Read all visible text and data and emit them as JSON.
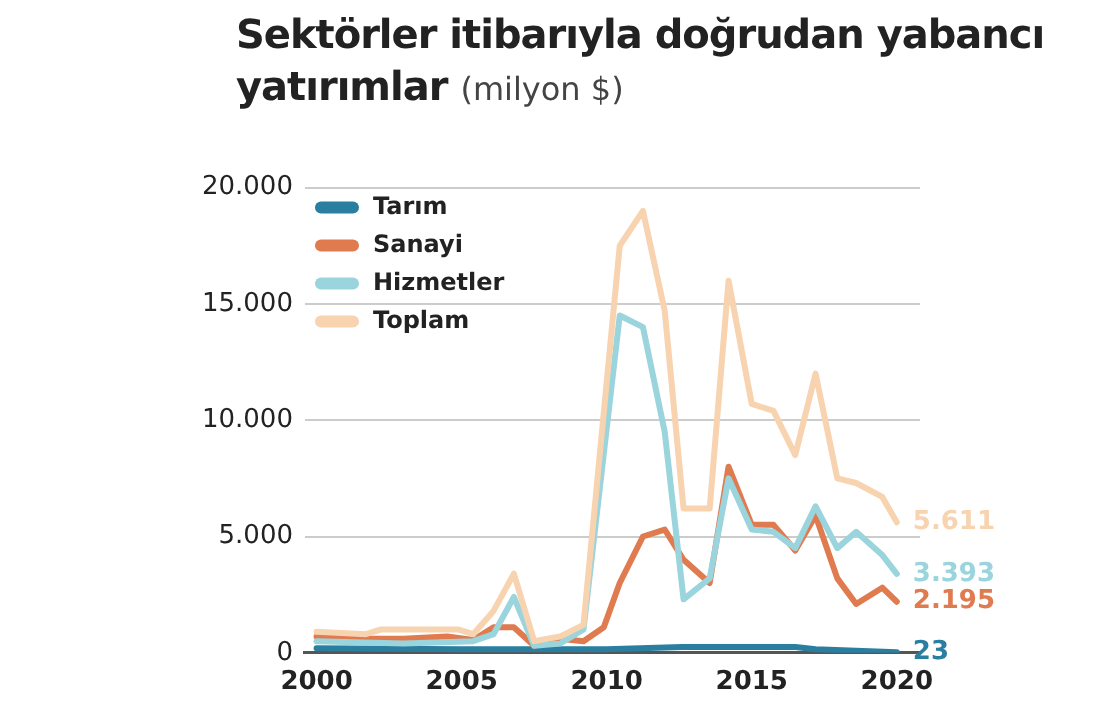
{
  "chart_data": {
    "type": "line",
    "title": "Sektörler itibarıyla doğrudan yabancı yatırımlar",
    "subtitle": "(milyon $)",
    "xlim": [
      1999.6,
      2020.8
    ],
    "xticks": [
      2000,
      2005,
      2010,
      2015,
      2020
    ],
    "ylim": [
      0,
      20000
    ],
    "yticks": [
      {
        "value": 0,
        "label": "0"
      },
      {
        "value": 5000,
        "label": "5.000"
      },
      {
        "value": 10000,
        "label": "10.000"
      },
      {
        "value": 15000,
        "label": "15.000"
      },
      {
        "value": 20000,
        "label": "20.000"
      }
    ],
    "grid": "y",
    "legend": "top left",
    "marker": "none",
    "line_style": "solid",
    "series": [
      {
        "name": "Tarım",
        "color": "#2a7fa0",
        "x": [
          2000,
          2005,
          2010,
          2012.6,
          2016.5,
          2017.2,
          2020
        ],
        "values": [
          200,
          150,
          150,
          250,
          250,
          150,
          23
        ],
        "value_labels": [
          null,
          null,
          null,
          null,
          null,
          null,
          "23"
        ]
      },
      {
        "name": "Sanayi",
        "color": "#e07a4f",
        "x": [
          2000,
          2001.7,
          2003,
          2004.5,
          2005.4,
          2006.1,
          2006.8,
          2007.5,
          2008.4,
          2009.2,
          2009.9,
          2010.45,
          2011.25,
          2012,
          2012.65,
          2013.55,
          2014.2,
          2015,
          2015.75,
          2016.5,
          2017.2,
          2017.95,
          2018.6,
          2019.5,
          2020
        ],
        "values": [
          700,
          600,
          600,
          700,
          550,
          1100,
          1100,
          300,
          600,
          500,
          1100,
          3000,
          5000,
          5300,
          4000,
          3000,
          8000,
          5500,
          5500,
          4400,
          5900,
          3200,
          2100,
          2800,
          2195
        ],
        "value_labels": [
          null,
          null,
          null,
          null,
          null,
          null,
          null,
          null,
          null,
          null,
          null,
          null,
          null,
          null,
          null,
          null,
          null,
          null,
          null,
          null,
          null,
          null,
          null,
          null,
          "2.195"
        ]
      },
      {
        "name": "Hizmetler",
        "color": "#9ad4dc",
        "x": [
          2000,
          2003,
          2005.4,
          2006.1,
          2006.8,
          2007.5,
          2008.4,
          2009.2,
          2010.45,
          2011.25,
          2012,
          2012.65,
          2013.55,
          2014.2,
          2015,
          2015.75,
          2016.5,
          2017.2,
          2017.95,
          2018.6,
          2019.5,
          2020
        ],
        "values": [
          500,
          400,
          500,
          800,
          2400,
          300,
          400,
          1000,
          14500,
          14000,
          9500,
          2300,
          3200,
          7500,
          5300,
          5200,
          4500,
          6300,
          4500,
          5200,
          4200,
          3393
        ],
        "value_labels": [
          null,
          null,
          null,
          null,
          null,
          null,
          null,
          null,
          null,
          null,
          null,
          null,
          null,
          null,
          null,
          null,
          null,
          null,
          null,
          null,
          null,
          "3.393"
        ]
      },
      {
        "name": "Toplam",
        "color": "#f7d3b0",
        "x": [
          2000,
          2001.7,
          2002.2,
          2004.9,
          2005.4,
          2006.1,
          2006.8,
          2007.5,
          2008.4,
          2009.2,
          2010.45,
          2011.25,
          2012,
          2012.65,
          2013.55,
          2014.2,
          2015,
          2015.75,
          2016.5,
          2017.2,
          2017.95,
          2018.6,
          2019.5,
          2020
        ],
        "values": [
          900,
          800,
          1000,
          1000,
          800,
          1800,
          3400,
          500,
          700,
          1200,
          17500,
          19000,
          14700,
          6200,
          6200,
          16000,
          10700,
          10400,
          8500,
          12000,
          7500,
          7300,
          6700,
          5611
        ],
        "value_labels": [
          null,
          null,
          null,
          null,
          null,
          null,
          null,
          null,
          null,
          null,
          null,
          null,
          null,
          null,
          null,
          null,
          null,
          null,
          null,
          null,
          null,
          null,
          null,
          "5.611"
        ]
      }
    ]
  }
}
